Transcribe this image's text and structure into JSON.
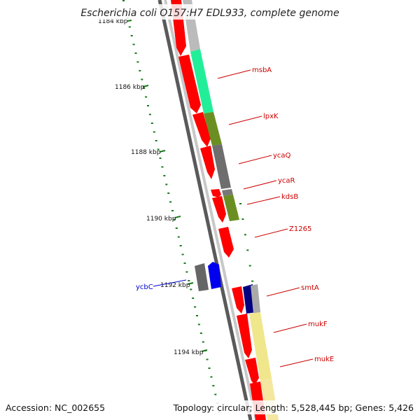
{
  "title": "Escherichia coli O157:H7 EDL933, complete genome",
  "footer": {
    "accession": "Accession: NC_002655",
    "summary": "Topology: circular; Length: 5,528,445 bp; Genes: 5,426"
  },
  "colors": {
    "backbone_dark": "#5a5a5a",
    "backbone_light": "#c8c8c8",
    "cds_red": "#ff0000",
    "tick_green": "#1a7a1a",
    "label_red": "#cc0000",
    "label_blue": "#0000cc"
  },
  "scale_labels": [
    "1184 kbp",
    "1186 kbp",
    "1188 kbp",
    "1190 kbp",
    "1192 kbp",
    "1194 kbp"
  ],
  "gene_labels": [
    {
      "text": "msbA",
      "color": "#cc0000"
    },
    {
      "text": "lpxK",
      "color": "#cc0000"
    },
    {
      "text": "ycaQ",
      "color": "#cc0000"
    },
    {
      "text": "ycaR",
      "color": "#cc0000"
    },
    {
      "text": "kdsB",
      "color": "#cc0000"
    },
    {
      "text": "Z1265",
      "color": "#cc0000"
    },
    {
      "text": "smtA",
      "color": "#cc0000"
    },
    {
      "text": "mukF",
      "color": "#cc0000"
    },
    {
      "text": "mukE",
      "color": "#cc0000"
    },
    {
      "text": "ycbC",
      "color": "#0000cc"
    }
  ]
}
